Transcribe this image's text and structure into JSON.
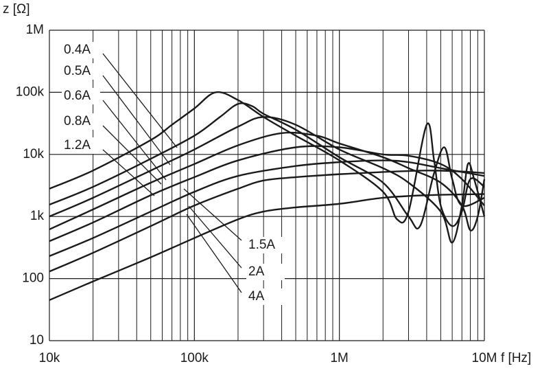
{
  "chart_data": {
    "type": "line",
    "log_x": true,
    "log_y": true,
    "grid": true,
    "color": "#1a1a1a",
    "y_label": "z [Ω]",
    "x_label": "f [Hz]",
    "xlim": [
      10000,
      10000000
    ],
    "ylim": [
      10,
      1000000
    ],
    "xticks": [
      {
        "value": 10000,
        "label": "10k"
      },
      {
        "value": 100000,
        "label": "100k"
      },
      {
        "value": 1000000,
        "label": "1M"
      },
      {
        "value": 10000000,
        "label": "10M"
      }
    ],
    "yticks": [
      10,
      100,
      {
        "value": 1000,
        "label": "1k"
      },
      {
        "value": 10000,
        "label": "10k"
      },
      {
        "value": 100000,
        "label": "100k"
      },
      {
        "value": 1000000,
        "label": "1M"
      }
    ],
    "series": [
      {
        "name": "0.4A",
        "x": [
          10000,
          20000,
          50000,
          70000,
          100000,
          140000,
          200000,
          300000,
          500000,
          1000000,
          2000000,
          2500000,
          3000000,
          4000000,
          4500000,
          5000000,
          6000000,
          7000000,
          8000000,
          10000000
        ],
        "values": [
          2800,
          5500,
          17000,
          30000,
          55000,
          100000,
          75000,
          40000,
          20000,
          8000,
          2500,
          900,
          1200,
          30000,
          8000,
          1500,
          700,
          1200,
          4000,
          3000
        ]
      },
      {
        "name": "0.5A",
        "x": [
          10000,
          20000,
          50000,
          100000,
          150000,
          200000,
          250000,
          300000,
          500000,
          1000000,
          2000000,
          3000000,
          3600000,
          4500000,
          5300000,
          6000000,
          7000000,
          10000000
        ],
        "values": [
          1550,
          3000,
          8500,
          20000,
          40000,
          65000,
          60000,
          45000,
          25000,
          9000,
          3500,
          1000,
          700,
          5000,
          13000,
          4000,
          1500,
          2000
        ]
      },
      {
        "name": "0.6A",
        "x": [
          10000,
          20000,
          50000,
          100000,
          200000,
          300000,
          500000,
          1000000,
          2000000,
          3000000,
          5000000,
          6000000,
          7000000,
          7700000,
          8500000,
          10000000
        ],
        "values": [
          1000,
          2000,
          5500,
          12000,
          28000,
          40000,
          30000,
          12000,
          6000,
          3500,
          1200,
          380,
          1500,
          7000,
          4000,
          1000
        ]
      },
      {
        "name": "0.8A",
        "x": [
          10000,
          20000,
          50000,
          100000,
          200000,
          400000,
          700000,
          1000000,
          2000000,
          3000000,
          5000000,
          7000000,
          8000000,
          9000000,
          10000000
        ],
        "values": [
          620,
          1300,
          3500,
          7000,
          14000,
          22000,
          20000,
          15000,
          9000,
          6000,
          3500,
          1500,
          600,
          1000,
          4000
        ]
      },
      {
        "name": "1.2A",
        "x": [
          10000,
          20000,
          50000,
          100000,
          200000,
          500000,
          1000000,
          2000000,
          3000000,
          5000000,
          7000000,
          10000000
        ],
        "values": [
          400,
          800,
          2200,
          4300,
          8000,
          13000,
          13000,
          10000,
          9500,
          7000,
          4000,
          1500
        ]
      },
      {
        "name": "1.5A",
        "x": [
          10000,
          20000,
          50000,
          100000,
          200000,
          500000,
          1000000,
          2000000,
          3000000,
          5000000,
          10000000
        ],
        "values": [
          230,
          450,
          1200,
          2500,
          4500,
          6500,
          7500,
          8000,
          7500,
          6000,
          4500
        ]
      },
      {
        "name": "2A",
        "x": [
          10000,
          20000,
          50000,
          100000,
          200000,
          300000,
          500000,
          1000000,
          2000000,
          4000000,
          7000000,
          10000000
        ],
        "values": [
          130,
          260,
          700,
          1500,
          2800,
          3800,
          4300,
          4800,
          5200,
          5500,
          5300,
          5000
        ]
      },
      {
        "name": "4A",
        "x": [
          10000,
          20000,
          50000,
          100000,
          200000,
          300000,
          500000,
          1000000,
          2000000,
          4000000,
          10000000
        ],
        "values": [
          45,
          90,
          220,
          450,
          900,
          1200,
          1400,
          1600,
          2000,
          2200,
          2300
        ]
      }
    ]
  }
}
